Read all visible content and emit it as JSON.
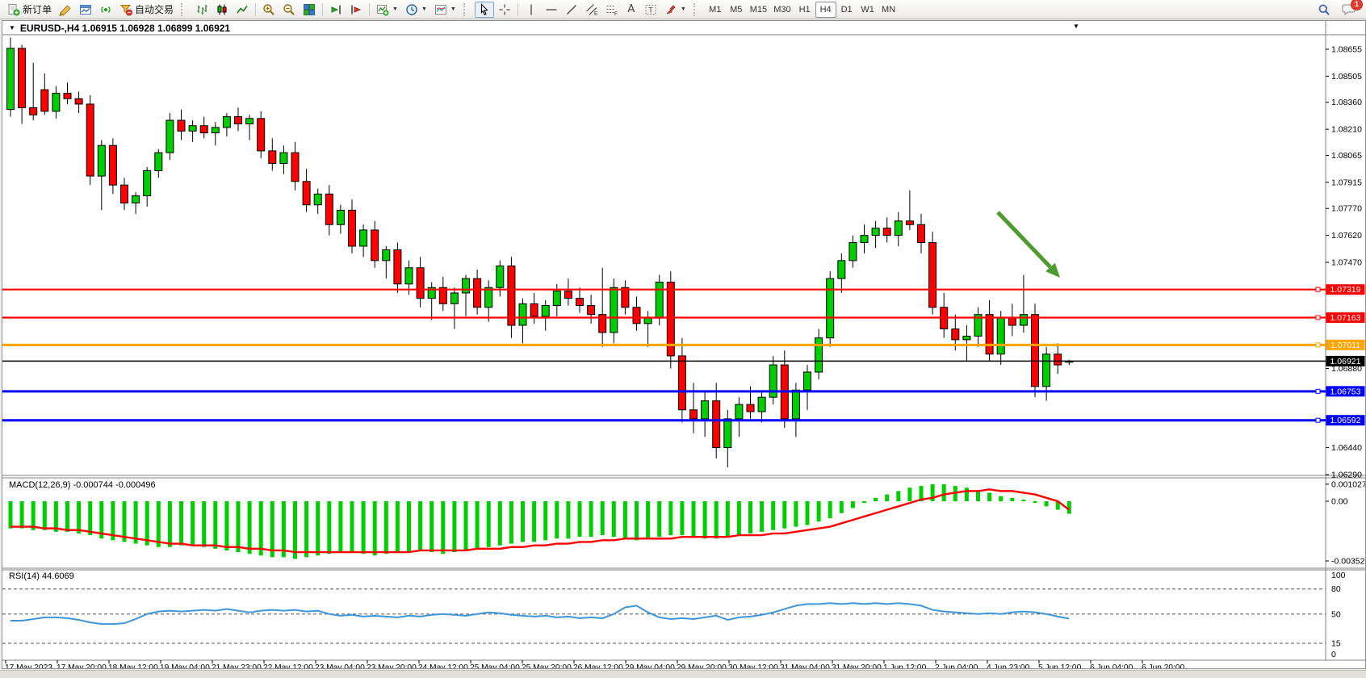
{
  "toolbar": {
    "new_order_label": "新订单",
    "auto_trading_label": "自动交易",
    "timeframes": [
      "M1",
      "M5",
      "M15",
      "M30",
      "H1",
      "H4",
      "D1",
      "W1",
      "MN"
    ],
    "active_timeframe": "H4",
    "notification_count": "1"
  },
  "chart_header": {
    "collapse_marker": "▼",
    "symbol_title": "EURUSD-,H4  1.06915 1.06928 1.06899 1.06921",
    "scroll_marker": "▼"
  },
  "indicator_labels": {
    "macd": "MACD(12,26,9) -0.000744 -0.000496",
    "rsi": "RSI(14) 44.6069"
  },
  "chart_data": {
    "type": "candlestick",
    "symbol": "EURUSD-",
    "timeframe": "H4",
    "last_ohlc": {
      "open": 1.06915,
      "high": 1.06928,
      "low": 1.06899,
      "close": 1.06921
    },
    "ylim": [
      1.0629,
      1.08655
    ],
    "price_axis_ticks": [
      1.08655,
      1.08505,
      1.0836,
      1.0821,
      1.08065,
      1.07915,
      1.0777,
      1.0762,
      1.0747,
      1.0688,
      1.0644,
      1.0629
    ],
    "bull_color": "#00CE00",
    "bear_color": "#FF0000",
    "outline_color": "#000000",
    "candles": [
      [
        1.0832,
        1.0872,
        1.0828,
        1.0866
      ],
      [
        1.0866,
        1.0868,
        1.0824,
        1.0833
      ],
      [
        1.0833,
        1.0858,
        1.0826,
        1.0829
      ],
      [
        1.0843,
        1.0852,
        1.0829,
        1.0831
      ],
      [
        1.0831,
        1.0845,
        1.0827,
        1.0841
      ],
      [
        1.0841,
        1.0847,
        1.0835,
        1.0838
      ],
      [
        1.0838,
        1.0842,
        1.083,
        1.0835
      ],
      [
        1.0835,
        1.084,
        1.079,
        1.0795
      ],
      [
        1.0795,
        1.0815,
        1.0776,
        1.0812
      ],
      [
        1.0812,
        1.0816,
        1.0785,
        1.079
      ],
      [
        1.079,
        1.0794,
        1.0776,
        1.078
      ],
      [
        1.078,
        1.0786,
        1.0774,
        1.0784
      ],
      [
        1.0784,
        1.08,
        1.0778,
        1.0798
      ],
      [
        1.0798,
        1.081,
        1.0794,
        1.0808
      ],
      [
        1.0808,
        1.083,
        1.0804,
        1.0826
      ],
      [
        1.0826,
        1.0832,
        1.0815,
        1.082
      ],
      [
        1.082,
        1.0826,
        1.0814,
        1.0823
      ],
      [
        1.0823,
        1.0828,
        1.0816,
        1.0819
      ],
      [
        1.0819,
        1.0825,
        1.0812,
        1.0822
      ],
      [
        1.0822,
        1.083,
        1.0817,
        1.0828
      ],
      [
        1.0828,
        1.0833,
        1.082,
        1.0824
      ],
      [
        1.0824,
        1.0829,
        1.0815,
        1.0827
      ],
      [
        1.0827,
        1.0831,
        1.0805,
        1.0809
      ],
      [
        1.0809,
        1.0816,
        1.0798,
        1.0802
      ],
      [
        1.0802,
        1.0812,
        1.0796,
        1.0808
      ],
      [
        1.0808,
        1.0814,
        1.0787,
        1.0792
      ],
      [
        1.0792,
        1.0799,
        1.0775,
        1.0779
      ],
      [
        1.0779,
        1.0788,
        1.0774,
        1.0785
      ],
      [
        1.0785,
        1.079,
        1.0762,
        1.0768
      ],
      [
        1.0768,
        1.0779,
        1.0763,
        1.0776
      ],
      [
        1.0776,
        1.0782,
        1.0752,
        1.0756
      ],
      [
        1.0756,
        1.0768,
        1.075,
        1.0765
      ],
      [
        1.0765,
        1.077,
        1.0744,
        1.0748
      ],
      [
        1.0748,
        1.0756,
        1.0738,
        1.0754
      ],
      [
        1.0754,
        1.0758,
        1.073,
        1.0735
      ],
      [
        1.0735,
        1.0748,
        1.0729,
        1.0744
      ],
      [
        1.0744,
        1.075,
        1.0722,
        1.0727
      ],
      [
        1.0727,
        1.0736,
        1.0715,
        1.0733
      ],
      [
        1.0733,
        1.0739,
        1.072,
        1.0724
      ],
      [
        1.0724,
        1.0733,
        1.071,
        1.073
      ],
      [
        1.073,
        1.074,
        1.0717,
        1.0738
      ],
      [
        1.0738,
        1.0743,
        1.0718,
        1.0722
      ],
      [
        1.0722,
        1.0737,
        1.0714,
        1.0733
      ],
      [
        1.0733,
        1.0748,
        1.0728,
        1.0745
      ],
      [
        1.0745,
        1.075,
        1.0705,
        1.0712
      ],
      [
        1.0712,
        1.0727,
        1.0702,
        1.0724
      ],
      [
        1.0724,
        1.073,
        1.0713,
        1.0717
      ],
      [
        1.0717,
        1.0726,
        1.0709,
        1.0723
      ],
      [
        1.0723,
        1.0735,
        1.0717,
        1.0731
      ],
      [
        1.0731,
        1.0738,
        1.0723,
        1.0727
      ],
      [
        1.0727,
        1.0733,
        1.0719,
        1.0723
      ],
      [
        1.0723,
        1.0729,
        1.0713,
        1.0718
      ],
      [
        1.0718,
        1.0744,
        1.07,
        1.0708
      ],
      [
        1.0708,
        1.0738,
        1.0702,
        1.0733
      ],
      [
        1.0733,
        1.0737,
        1.0718,
        1.0722
      ],
      [
        1.0722,
        1.0728,
        1.0709,
        1.0713
      ],
      [
        1.0713,
        1.072,
        1.07,
        1.0716
      ],
      [
        1.0716,
        1.074,
        1.0712,
        1.0736
      ],
      [
        1.0736,
        1.0742,
        1.0688,
        1.0695
      ],
      [
        1.0695,
        1.0705,
        1.0658,
        1.0665
      ],
      [
        1.0665,
        1.068,
        1.0652,
        1.066
      ],
      [
        1.066,
        1.0675,
        1.065,
        1.067
      ],
      [
        1.067,
        1.068,
        1.0638,
        1.0644
      ],
      [
        1.0644,
        1.0665,
        1.0633,
        1.066
      ],
      [
        1.066,
        1.0672,
        1.065,
        1.0668
      ],
      [
        1.0668,
        1.0678,
        1.066,
        1.0664
      ],
      [
        1.0664,
        1.0676,
        1.0658,
        1.0672
      ],
      [
        1.0672,
        1.0695,
        1.0668,
        1.069
      ],
      [
        1.069,
        1.0698,
        1.0655,
        1.066
      ],
      [
        1.066,
        1.068,
        1.065,
        1.0676
      ],
      [
        1.0676,
        1.069,
        1.0665,
        1.0686
      ],
      [
        1.0686,
        1.071,
        1.0682,
        1.0705
      ],
      [
        1.0705,
        1.0742,
        1.07,
        1.0738
      ],
      [
        1.0738,
        1.0752,
        1.073,
        1.0748
      ],
      [
        1.0748,
        1.0762,
        1.0744,
        1.0758
      ],
      [
        1.0758,
        1.0768,
        1.0752,
        1.0762
      ],
      [
        1.0762,
        1.077,
        1.0755,
        1.0766
      ],
      [
        1.0766,
        1.0772,
        1.0758,
        1.0762
      ],
      [
        1.0762,
        1.0775,
        1.0756,
        1.077
      ],
      [
        1.077,
        1.0787,
        1.0765,
        1.0768
      ],
      [
        1.0768,
        1.0774,
        1.0752,
        1.0758
      ],
      [
        1.0758,
        1.0764,
        1.0718,
        1.0722
      ],
      [
        1.0722,
        1.073,
        1.0705,
        1.071
      ],
      [
        1.071,
        1.0718,
        1.0698,
        1.0704
      ],
      [
        1.0704,
        1.0712,
        1.0692,
        1.0706
      ],
      [
        1.0706,
        1.0722,
        1.07,
        1.0718
      ],
      [
        1.0718,
        1.0726,
        1.0692,
        1.0696
      ],
      [
        1.0696,
        1.072,
        1.069,
        1.0716
      ],
      [
        1.0716,
        1.0724,
        1.0706,
        1.0712
      ],
      [
        1.0712,
        1.074,
        1.0708,
        1.0718
      ],
      [
        1.0718,
        1.0724,
        1.0672,
        1.0678
      ],
      [
        1.0678,
        1.07,
        1.067,
        1.0696
      ],
      [
        1.0696,
        1.0702,
        1.0685,
        1.069
      ],
      [
        1.06915,
        1.06928,
        1.06899,
        1.06921
      ]
    ],
    "hlines": [
      {
        "price": 1.07319,
        "color": "#FF0000",
        "width": 2.2,
        "label": "1.07319"
      },
      {
        "price": 1.07163,
        "color": "#FF0000",
        "width": 2.2,
        "label": "1.07163"
      },
      {
        "price": 1.07011,
        "color": "#FFA500",
        "width": 3,
        "label": "1.07011"
      },
      {
        "price": 1.06753,
        "color": "#0000FF",
        "width": 3,
        "label": "1.06753"
      },
      {
        "price": 1.06592,
        "color": "#0000FF",
        "width": 3,
        "label": "1.06592"
      }
    ],
    "current_price": {
      "price": 1.06921,
      "label": "1.06921",
      "color": "#000000"
    },
    "annotation_arrow": {
      "color": "#4E9B2F"
    },
    "macd": {
      "unit": 0.0001,
      "axis_max": 0.001027,
      "axis_min": -0.00352,
      "axis_labels": [
        "0.001027",
        "0.00",
        "-0.00352"
      ],
      "histogram_color": "#00CE00",
      "signal_color": "#FF0000",
      "histogram": [
        -16,
        -16,
        -17,
        -17,
        -18,
        -18,
        -19,
        -20,
        -22,
        -23,
        -24,
        -25,
        -26,
        -27,
        -27,
        -26,
        -26,
        -27,
        -28,
        -29,
        -30,
        -31,
        -32,
        -33,
        -33,
        -34,
        -33,
        -32,
        -31,
        -30,
        -30,
        -31,
        -32,
        -31,
        -30,
        -30,
        -29,
        -30,
        -31,
        -30,
        -29,
        -28,
        -27,
        -26,
        -25,
        -24,
        -24,
        -23,
        -22,
        -22,
        -21,
        -21,
        -20,
        -21,
        -22,
        -23,
        -22,
        -21,
        -20,
        -20,
        -21,
        -22,
        -22,
        -21,
        -20,
        -19,
        -18,
        -17,
        -16,
        -15,
        -14,
        -12,
        -10,
        -7,
        -4,
        -1,
        2,
        4,
        6,
        8,
        9,
        10,
        10,
        9,
        8,
        6,
        5,
        3,
        2,
        1,
        -1,
        -3,
        -5,
        -7.4
      ],
      "signal": [
        -15,
        -15,
        -15,
        -16,
        -16,
        -17,
        -17,
        -18,
        -19,
        -20,
        -21,
        -22,
        -23,
        -24,
        -25,
        -25,
        -26,
        -26,
        -26,
        -27,
        -27,
        -28,
        -28,
        -29,
        -29,
        -30,
        -30,
        -30,
        -30,
        -30,
        -30,
        -30,
        -30,
        -30,
        -30,
        -30,
        -29,
        -29,
        -29,
        -29,
        -29,
        -28,
        -28,
        -28,
        -27,
        -27,
        -26,
        -26,
        -25,
        -25,
        -24,
        -24,
        -23,
        -23,
        -22,
        -22,
        -22,
        -22,
        -22,
        -21,
        -21,
        -21,
        -21,
        -21,
        -20,
        -20,
        -20,
        -19,
        -19,
        -18,
        -17,
        -16,
        -15,
        -13,
        -11,
        -9,
        -7,
        -5,
        -3,
        -1,
        1,
        2,
        4,
        5,
        6,
        6,
        7,
        6,
        6,
        5,
        4,
        2,
        0,
        -5
      ]
    },
    "rsi": {
      "levels": [
        80,
        50,
        15
      ],
      "axis_labels": [
        "100",
        "80",
        "50",
        "15",
        "0"
      ],
      "line_color": "#3E96D9",
      "values": [
        42,
        42,
        44,
        46,
        46,
        45,
        43,
        40,
        38,
        38,
        39,
        44,
        50,
        53,
        54,
        53,
        54,
        55,
        54,
        56,
        54,
        52,
        54,
        55,
        54,
        55,
        53,
        54,
        50,
        48,
        49,
        47,
        48,
        47,
        46,
        48,
        47,
        49,
        50,
        49,
        48,
        50,
        52,
        51,
        49,
        48,
        47,
        48,
        46,
        47,
        45,
        46,
        45,
        50,
        58,
        60,
        52,
        46,
        44,
        45,
        44,
        46,
        48,
        43,
        46,
        47,
        49,
        52,
        56,
        60,
        62,
        62,
        63,
        62,
        63,
        62,
        63,
        62,
        63,
        62,
        60,
        55,
        53,
        52,
        51,
        50,
        51,
        50,
        52,
        53,
        52,
        50,
        47,
        44.6
      ]
    },
    "x_axis_labels": [
      "17 May 2023",
      "17 May 20:00",
      "18 May 12:00",
      "19 May 04:00",
      "21 May 23:00",
      "22 May 12:00",
      "23 May 04:00",
      "23 May 20:00",
      "24 May 12:00",
      "25 May 04:00",
      "25 May 20:00",
      "26 May 12:00",
      "29 May 04:00",
      "29 May 20:00",
      "30 May 12:00",
      "31 May 04:00",
      "31 May 20:00",
      "1 Jun 12:00",
      "2 Jun 04:00",
      "4 Jun 23:00",
      "5 Jun 12:00",
      "6 Jun 04:00",
      "6 Jun 20:00"
    ]
  }
}
